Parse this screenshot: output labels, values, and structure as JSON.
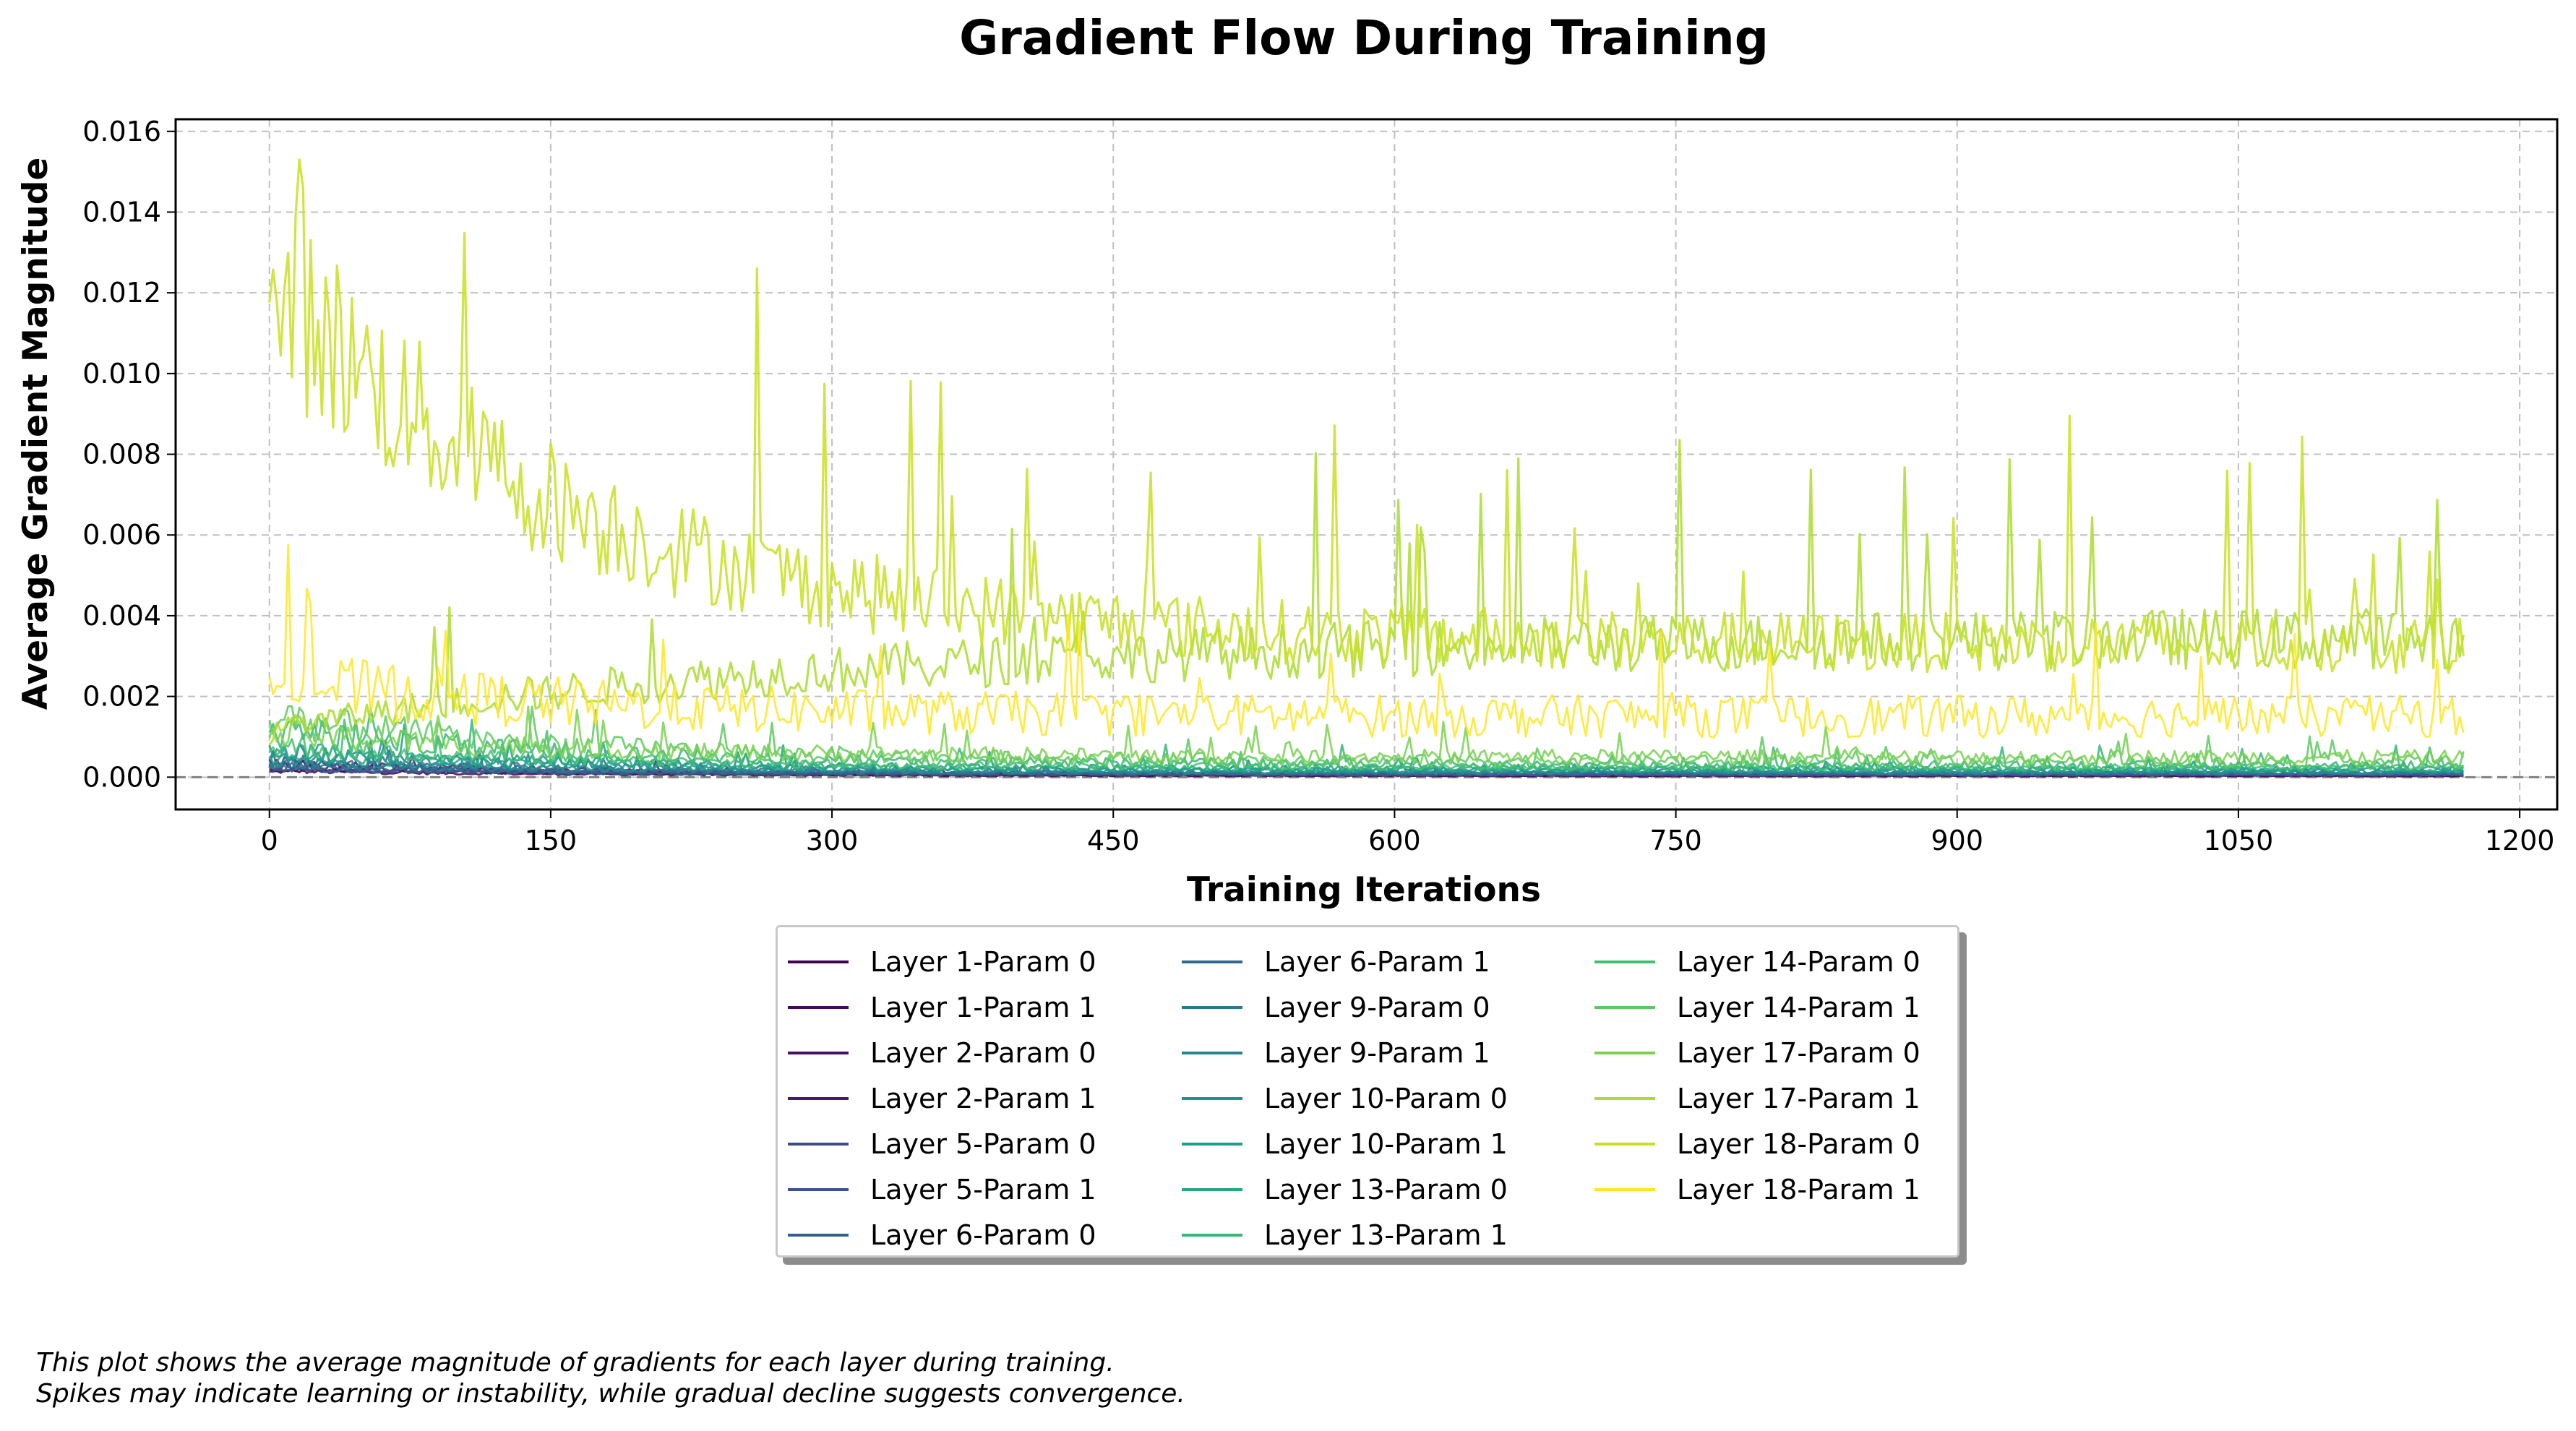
{
  "chart_data": {
    "type": "line",
    "title": "Gradient Flow During Training",
    "xlabel": "Training Iterations",
    "ylabel": "Average Gradient Magnitude",
    "xlim": [
      -50,
      1220
    ],
    "ylim": [
      -0.0008,
      0.0163
    ],
    "xticks": [
      0,
      150,
      300,
      450,
      600,
      750,
      900,
      1050,
      1200
    ],
    "yticks": [
      0.0,
      0.002,
      0.004,
      0.006,
      0.008,
      0.01,
      0.012,
      0.014,
      0.016
    ],
    "ytick_labels": [
      "0.000",
      "0.002",
      "0.004",
      "0.006",
      "0.008",
      "0.010",
      "0.012",
      "0.014",
      "0.016"
    ],
    "grid": true,
    "legend_position": "below-center",
    "n_iterations": 1170,
    "series": [
      {
        "name": "Layer 1-Param 0",
        "color": "#440154",
        "level_start": 0.00015,
        "level_end": 3e-05
      },
      {
        "name": "Layer 1-Param 1",
        "color": "#46085c",
        "level_start": 0.0003,
        "level_end": 4e-05
      },
      {
        "name": "Layer 2-Param 0",
        "color": "#471063",
        "level_start": 0.0002,
        "level_end": 4e-05
      },
      {
        "name": "Layer 2-Param 1",
        "color": "#48186a",
        "level_start": 0.0004,
        "level_end": 6e-05
      },
      {
        "name": "Layer 5-Param 0",
        "color": "#3e4a89",
        "level_start": 0.0002,
        "level_end": 5e-05
      },
      {
        "name": "Layer 5-Param 1",
        "color": "#3a548c",
        "level_start": 0.0003,
        "level_end": 8e-05
      },
      {
        "name": "Layer 6-Param 0",
        "color": "#355f8d",
        "level_start": 0.0002,
        "level_end": 6e-05
      },
      {
        "name": "Layer 6-Param 1",
        "color": "#31688e",
        "level_start": 0.0004,
        "level_end": 0.0001
      },
      {
        "name": "Layer 9-Param 0",
        "color": "#2a788e",
        "level_start": 0.0003,
        "level_end": 0.0001
      },
      {
        "name": "Layer 9-Param 1",
        "color": "#25848e",
        "level_start": 0.0006,
        "level_end": 0.00015
      },
      {
        "name": "Layer 10-Param 0",
        "color": "#21918c",
        "level_start": 0.0004,
        "level_end": 0.00012
      },
      {
        "name": "Layer 10-Param 1",
        "color": "#1f9e89",
        "level_start": 0.0007,
        "level_end": 0.0002
      },
      {
        "name": "Layer 13-Param 0",
        "color": "#22a884",
        "level_start": 0.0006,
        "level_end": 0.0002
      },
      {
        "name": "Layer 13-Param 1",
        "color": "#35b779",
        "level_start": 0.0012,
        "level_end": 0.0003
      },
      {
        "name": "Layer 14-Param 0",
        "color": "#44bf70",
        "level_start": 0.0008,
        "level_end": 0.00025
      },
      {
        "name": "Layer 14-Param 1",
        "color": "#5ec962",
        "level_start": 0.0015,
        "level_end": 0.0004
      },
      {
        "name": "Layer 17-Param 0",
        "color": "#7ad151",
        "level_start": 0.0011,
        "level_end": 0.0005
      },
      {
        "name": "Layer 17-Param 1",
        "color": "#addc30",
        "level_start": 0.0012,
        "level_end": 0.0035
      },
      {
        "name": "Layer 18-Param 0",
        "color": "#c8e020",
        "level_start": 0.0125,
        "level_end": 0.0033
      },
      {
        "name": "Layer 18-Param 1",
        "color": "#fde725",
        "level_start": 0.0024,
        "level_end": 0.0015
      }
    ]
  },
  "footnote": {
    "line1": "This plot shows the average magnitude of gradients for each layer during training.",
    "line2": "Spikes may indicate learning or instability, while gradual decline suggests convergence."
  }
}
